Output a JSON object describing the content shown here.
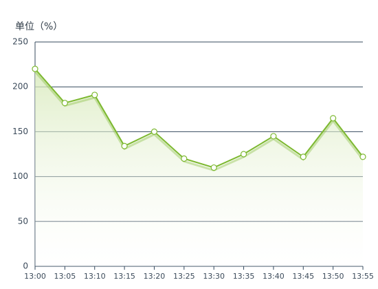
{
  "chart_data": {
    "type": "line",
    "y_label": "单位（%）",
    "categories": [
      "13:00",
      "13:05",
      "13:10",
      "13:15",
      "13:20",
      "13:25",
      "13:30",
      "13:35",
      "13:40",
      "13:45",
      "13:50",
      "13:55"
    ],
    "values": [
      220,
      182,
      191,
      134,
      150,
      120,
      110,
      125,
      145,
      122,
      165,
      122
    ],
    "color": "#7cb82f",
    "ylim": [
      0,
      250
    ],
    "yticks": [
      0,
      50,
      100,
      150,
      200,
      250
    ],
    "grid": true
  }
}
